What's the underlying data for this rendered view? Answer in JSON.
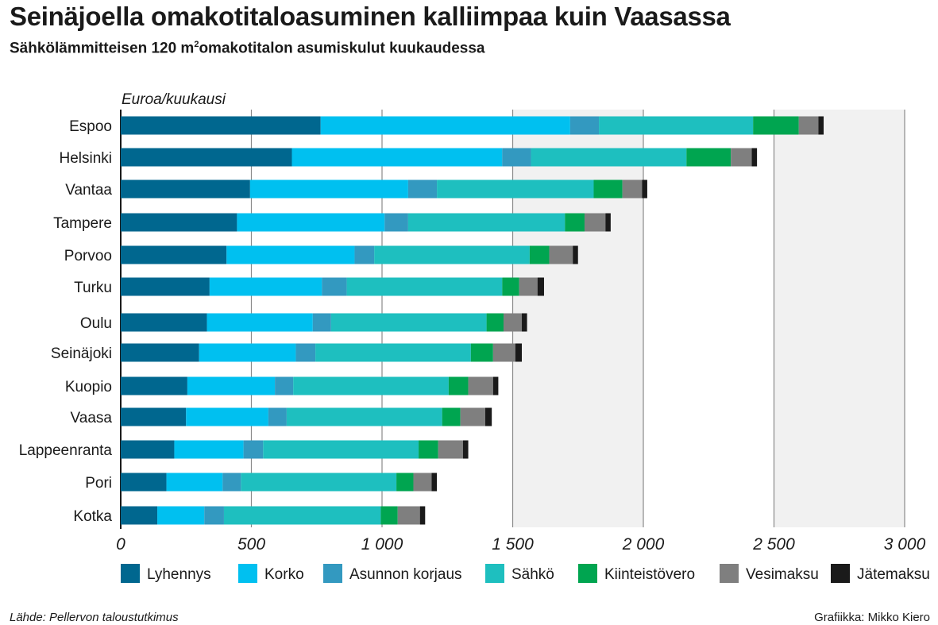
{
  "header": {
    "title": "Seinäjoella omakotitaloasuminen kalliimpaa kuin Vaasassa",
    "subtitle_pre": "Sähkölämmitteisen 120 m",
    "subtitle_sup": "2",
    "subtitle_post": "omakotitalon asumiskulut kuukaudessa"
  },
  "footer": {
    "source": "Lähde: Pellervon taloustutkimus",
    "credit": "Grafiikka: Mikko Kiero"
  },
  "chart_data": {
    "type": "bar",
    "orientation": "horizontal",
    "stacked": true,
    "unit_label": "Euroa/kuukausi",
    "xlim": [
      0,
      3000
    ],
    "xticks": [
      0,
      500,
      1000,
      1500,
      2000,
      2500,
      3000
    ],
    "xtick_labels": [
      "0",
      "500",
      "1 000",
      "1 500",
      "2 000",
      "2 500",
      "3 000"
    ],
    "grid": "vertical",
    "shaded_bands": [
      [
        1500,
        2000
      ],
      [
        2500,
        3000
      ]
    ],
    "legend_position": "bottom",
    "categories": [
      "Espoo",
      "Helsinki",
      "Vantaa",
      "Tampere",
      "Porvoo",
      "Turku",
      "Oulu",
      "Seinäjoki",
      "Kuopio",
      "Vaasa",
      "Lappeenranta",
      "Pori",
      "Kotka"
    ],
    "series": [
      {
        "name": "Lyhennys",
        "color": "#00678f",
        "values": [
          765,
          655,
          495,
          445,
          405,
          340,
          330,
          300,
          255,
          250,
          205,
          175,
          140
        ]
      },
      {
        "name": "Korko",
        "color": "#00c0f0",
        "values": [
          955,
          805,
          605,
          565,
          490,
          430,
          405,
          370,
          335,
          315,
          265,
          215,
          180
        ]
      },
      {
        "name": "Asunnon korjaus",
        "color": "#3399c0",
        "values": [
          110,
          110,
          110,
          90,
          75,
          95,
          70,
          75,
          70,
          70,
          75,
          70,
          75
        ]
      },
      {
        "name": "Sähkö",
        "color": "#1ebfbf",
        "values": [
          590,
          595,
          600,
          600,
          595,
          595,
          595,
          595,
          595,
          595,
          595,
          595,
          600
        ]
      },
      {
        "name": "Kiinteistövero",
        "color": "#00a550",
        "values": [
          175,
          170,
          110,
          75,
          75,
          65,
          65,
          85,
          75,
          70,
          75,
          65,
          65
        ]
      },
      {
        "name": "Vesimaksu",
        "color": "#7f7f7f",
        "values": [
          75,
          80,
          75,
          80,
          90,
          70,
          70,
          85,
          95,
          95,
          95,
          70,
          85
        ]
      },
      {
        "name": "Jätemaksu",
        "color": "#1a1a1a",
        "values": [
          20,
          20,
          20,
          20,
          20,
          25,
          20,
          25,
          20,
          25,
          20,
          20,
          20
        ]
      }
    ]
  }
}
